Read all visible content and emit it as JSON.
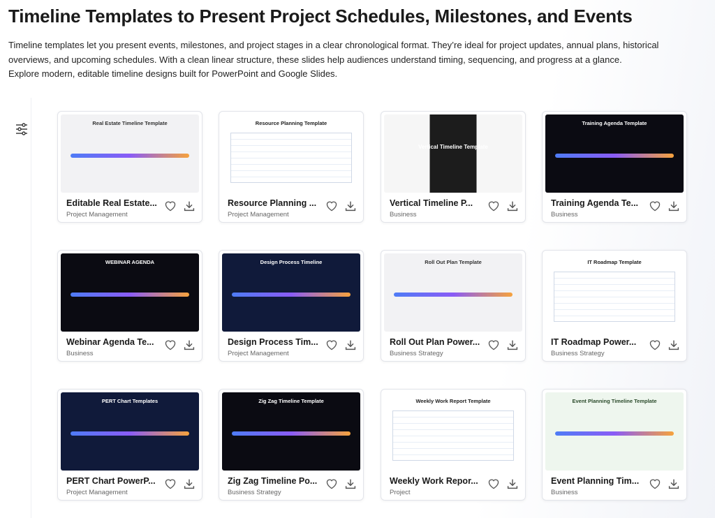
{
  "header": {
    "title": "Timeline Templates to Present Project Schedules, Milestones, and Events",
    "description": [
      "Timeline templates let you present events, milestones, and project stages in a clear chronological format. They’re ideal for project updates, annual plans, historical overviews, and upcoming schedules. With a clean linear structure, these slides help audiences understand timing, sequencing, and progress at a glance.",
      "Explore modern, editable timeline designs built for PowerPoint and Google Slides."
    ]
  },
  "cards": [
    {
      "thumb_title": "Real Estate Timeline Template",
      "title": "Editable Real Estate...",
      "category": "Project Management",
      "theme": "light"
    },
    {
      "thumb_title": "Resource Planning Template",
      "title": "Resource Planning ...",
      "category": "Project Management",
      "theme": "table"
    },
    {
      "thumb_title": "Vertical Timeline Template",
      "title": "Vertical Timeline P...",
      "category": "Business",
      "theme": "vertical"
    },
    {
      "thumb_title": "Training Agenda Template",
      "title": "Training Agenda Te...",
      "category": "Business",
      "theme": "black"
    },
    {
      "thumb_title": "WEBINAR AGENDA",
      "title": "Webinar Agenda Te...",
      "category": "Business",
      "theme": "black"
    },
    {
      "thumb_title": "Design Process Timeline",
      "title": "Design Process Tim...",
      "category": "Project Management",
      "theme": "navy"
    },
    {
      "thumb_title": "Roll Out Plan Template",
      "title": "Roll Out Plan Power...",
      "category": "Business Strategy",
      "theme": "light"
    },
    {
      "thumb_title": "IT Roadmap Template",
      "title": "IT Roadmap Power...",
      "category": "Business Strategy",
      "theme": "table"
    },
    {
      "thumb_title": "PERT Chart Templates",
      "title": "PERT Chart PowerP...",
      "category": "Project Management",
      "theme": "navy"
    },
    {
      "thumb_title": "Zig Zag Timeline Template",
      "title": "Zig Zag Timeline Po...",
      "category": "Business Strategy",
      "theme": "black"
    },
    {
      "thumb_title": "Weekly Work Report Template",
      "title": "Weekly Work Repor...",
      "category": "Project",
      "theme": "table"
    },
    {
      "thumb_title": "Event Planning Timeline Template",
      "title": "Event Planning Tim...",
      "category": "Business",
      "theme": "green"
    }
  ]
}
